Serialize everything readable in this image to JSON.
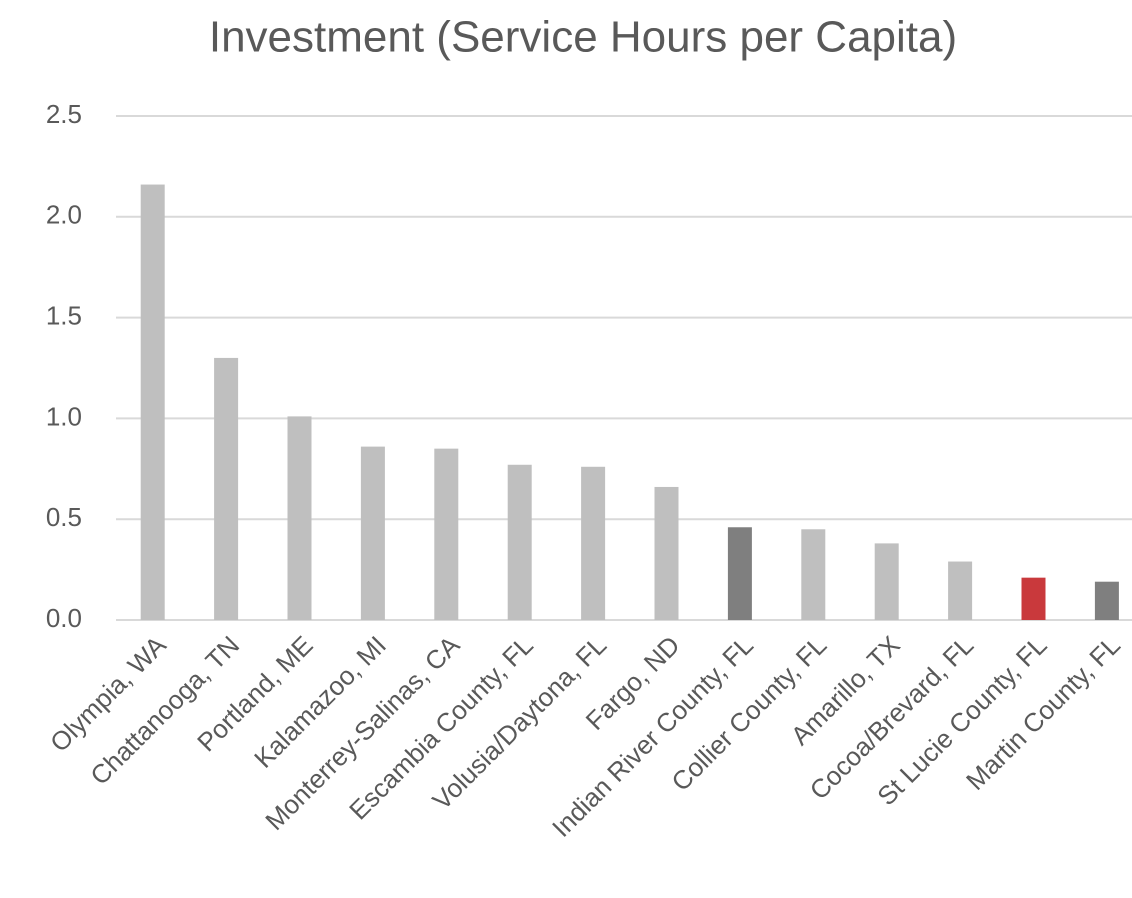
{
  "chart_data": {
    "type": "bar",
    "title": "Investment (Service Hours per Capita)",
    "categories": [
      "Olympia, WA",
      "Chattanooga, TN",
      "Portland, ME",
      "Kalamazoo, MI",
      "Monterrey-Salinas, CA",
      "Escambia County, FL",
      "Volusia/Daytona, FL",
      "Fargo, ND",
      "Indian River County, FL",
      "Collier County, FL",
      "Amarillo, TX",
      "Cocoa/Brevard, FL",
      "St Lucie County, FL",
      "Martin County, FL"
    ],
    "values": [
      2.16,
      1.3,
      1.01,
      0.86,
      0.85,
      0.77,
      0.76,
      0.66,
      0.46,
      0.45,
      0.38,
      0.29,
      0.21,
      0.19
    ],
    "colors": [
      "#bfbfbf",
      "#bfbfbf",
      "#bfbfbf",
      "#bfbfbf",
      "#bfbfbf",
      "#bfbfbf",
      "#bfbfbf",
      "#bfbfbf",
      "#7f7f7f",
      "#bfbfbf",
      "#bfbfbf",
      "#bfbfbf",
      "#c9393c",
      "#7f7f7f"
    ],
    "ylim": [
      0,
      2.5
    ],
    "yticks": [
      {
        "value": 0,
        "label": "0.0"
      },
      0.5,
      {
        "value": 1,
        "label": "1.0"
      },
      1.5,
      {
        "value": 2,
        "label": "2.0"
      },
      2.5
    ],
    "grid": true
  }
}
